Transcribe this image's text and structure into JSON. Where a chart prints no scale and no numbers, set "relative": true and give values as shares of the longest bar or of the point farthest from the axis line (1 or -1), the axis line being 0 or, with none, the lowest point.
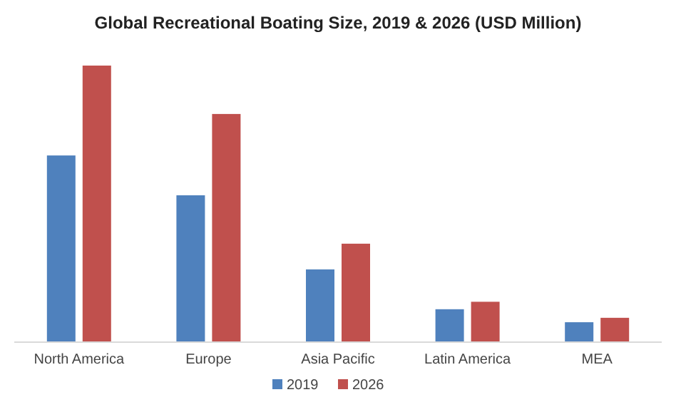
{
  "chart_data": {
    "type": "bar",
    "title": "Global  Recreational Boating  Size, 2019 & 2026 (USD Million)",
    "relative": true,
    "legend": "bottom",
    "categories": [
      "North America",
      "Europe",
      "Asia Pacific",
      "Latin America",
      "MEA"
    ],
    "series": [
      {
        "name": "2019",
        "color": "#4f81bd",
        "values": [
          0.675,
          0.531,
          0.263,
          0.119,
          0.072
        ]
      },
      {
        "name": "2026",
        "color": "#c0504d",
        "values": [
          1,
          0.825,
          0.356,
          0.146,
          0.088
        ]
      }
    ]
  }
}
